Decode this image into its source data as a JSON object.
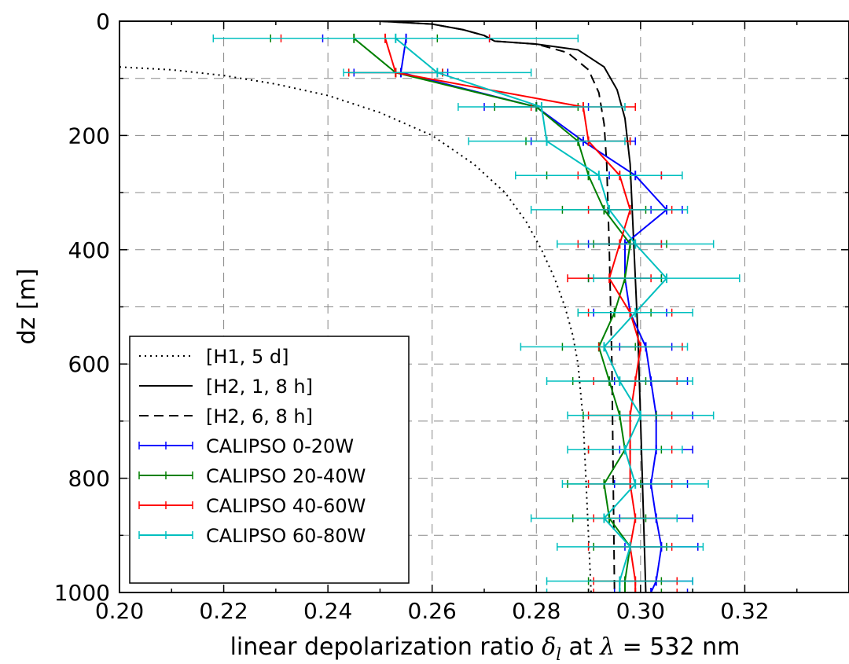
{
  "chart_data": {
    "type": "line",
    "xlabel": "linear depolarization ratio δl at λ = 532 nm",
    "ylabel": "dz [m]",
    "xlim": [
      0.2,
      0.34
    ],
    "ylim": [
      1000,
      0
    ],
    "y_inverted": true,
    "grid": true,
    "legend_position": "lower-left",
    "x_ticks": [
      "0.20",
      "0.22",
      "0.24",
      "0.26",
      "0.28",
      "0.30",
      "0.32"
    ],
    "y_ticks": [
      "0",
      "200",
      "400",
      "600",
      "800",
      "1000"
    ],
    "series": [
      {
        "name": "[H1, 5 d]",
        "style": "dotted",
        "color": "#000000",
        "x": [
          0.2,
          0.21,
          0.22,
          0.23,
          0.24,
          0.25,
          0.26,
          0.268,
          0.274,
          0.278,
          0.281,
          0.2835,
          0.2855,
          0.287,
          0.288,
          0.289,
          0.2895,
          0.29,
          0.2905
        ],
        "y": [
          80,
          85,
          95,
          110,
          130,
          160,
          200,
          250,
          300,
          350,
          400,
          450,
          500,
          550,
          600,
          700,
          800,
          900,
          1000
        ]
      },
      {
        "name": "[H2, 1, 8 h]",
        "style": "solid",
        "color": "#000000",
        "x": [
          0.25,
          0.26,
          0.266,
          0.27,
          0.272,
          0.28,
          0.288,
          0.293,
          0.2955,
          0.297,
          0.298,
          0.2985,
          0.299,
          0.2995,
          0.3,
          0.3005,
          0.301
        ],
        "y": [
          0,
          5,
          15,
          25,
          35,
          40,
          50,
          80,
          120,
          170,
          250,
          350,
          450,
          550,
          700,
          850,
          1000
        ]
      },
      {
        "name": "[H2, 6, 8 h]",
        "style": "dashed",
        "color": "#000000",
        "x": [
          0.25,
          0.26,
          0.266,
          0.27,
          0.272,
          0.28,
          0.286,
          0.29,
          0.292,
          0.293,
          0.2935,
          0.294,
          0.2945,
          0.295
        ],
        "y": [
          0,
          5,
          15,
          25,
          35,
          40,
          55,
          85,
          125,
          180,
          250,
          400,
          600,
          1000
        ]
      },
      {
        "name": "CALIPSO 0-20W",
        "color": "#0000ff",
        "x": [
          0.255,
          0.254,
          0.28,
          0.289,
          0.299,
          0.305,
          0.297,
          0.297,
          0.298,
          0.301,
          0.302,
          0.303,
          0.303,
          0.302,
          0.303,
          0.304,
          0.303,
          0.302
        ],
        "y": [
          30,
          90,
          150,
          210,
          270,
          330,
          390,
          450,
          510,
          570,
          630,
          690,
          750,
          810,
          870,
          920,
          980,
          1000
        ],
        "err": [
          0.016,
          0.009,
          0.01,
          0.01,
          0.005,
          0.003,
          0.007,
          0.007,
          0.007,
          0.005,
          0.007,
          0.007,
          0.007,
          0.007,
          0.007,
          0.007,
          0.007,
          0.007
        ]
      },
      {
        "name": "CALIPSO 20-40W",
        "color": "#008000",
        "x": [
          0.245,
          0.253,
          0.28,
          0.288,
          0.29,
          0.293,
          0.298,
          0.297,
          0.295,
          0.292,
          0.294,
          0.296,
          0.297,
          0.293,
          0.294,
          0.298,
          0.297,
          0.297
        ],
        "y": [
          30,
          90,
          150,
          210,
          270,
          330,
          390,
          450,
          510,
          570,
          630,
          690,
          750,
          810,
          870,
          920,
          980,
          1000
        ],
        "err": [
          0.016,
          0.009,
          0.008,
          0.01,
          0.008,
          0.008,
          0.007,
          0.007,
          0.007,
          0.007,
          0.007,
          0.007,
          0.007,
          0.007,
          0.007,
          0.007,
          0.007,
          0.007
        ]
      },
      {
        "name": "CALIPSO 40-60W",
        "color": "#ff0000",
        "x": [
          0.251,
          0.253,
          0.289,
          0.29,
          0.296,
          0.298,
          0.296,
          0.294,
          0.298,
          0.3,
          0.299,
          0.298,
          0.298,
          0.298,
          0.299,
          0.298,
          0.299,
          0.299
        ],
        "y": [
          30,
          90,
          150,
          210,
          270,
          330,
          390,
          450,
          510,
          570,
          630,
          690,
          750,
          810,
          870,
          920,
          980,
          1000
        ],
        "err": [
          0.02,
          0.009,
          0.01,
          0.008,
          0.008,
          0.008,
          0.008,
          0.008,
          0.008,
          0.008,
          0.008,
          0.008,
          0.008,
          0.008,
          0.008,
          0.008,
          0.008,
          0.008
        ]
      },
      {
        "name": "CALIPSO 60-80W",
        "color": "#00bfbf",
        "x": [
          0.253,
          0.261,
          0.281,
          0.282,
          0.292,
          0.294,
          0.299,
          0.305,
          0.299,
          0.293,
          0.296,
          0.3,
          0.297,
          0.299,
          0.293,
          0.298,
          0.296,
          0.296
        ],
        "y": [
          30,
          90,
          150,
          210,
          270,
          330,
          390,
          450,
          510,
          570,
          630,
          690,
          750,
          810,
          870,
          920,
          980,
          1000
        ],
        "err": [
          0.035,
          0.018,
          0.016,
          0.015,
          0.016,
          0.015,
          0.015,
          0.014,
          0.011,
          0.016,
          0.014,
          0.014,
          0.011,
          0.014,
          0.014,
          0.014,
          0.014,
          0.014
        ]
      }
    ]
  }
}
